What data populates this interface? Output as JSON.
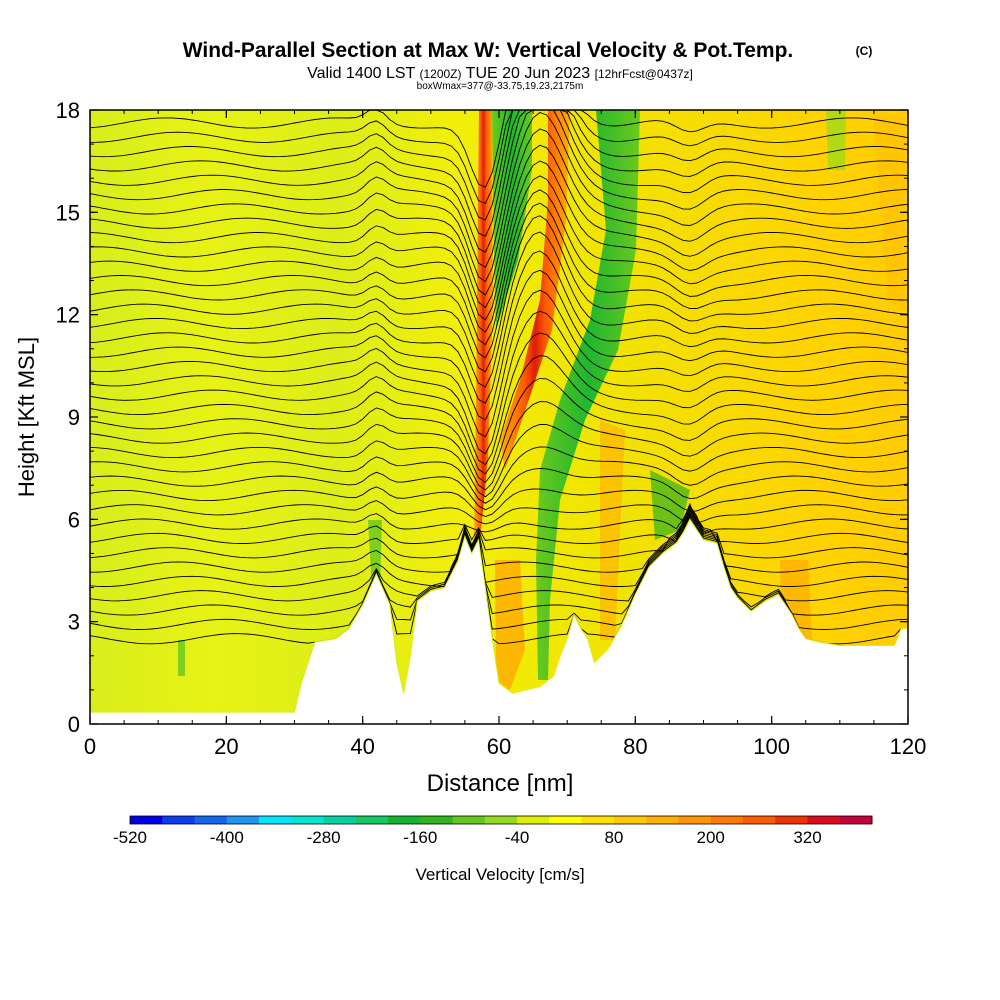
{
  "chart_data": {
    "type": "heatmap",
    "title_main": "Wind-Parallel Section at Max W: Vertical Velocity & Pot.Temp.",
    "title_copyright": "(C)",
    "subtitle_valid": "Valid 1400 LST",
    "subtitle_utc": "(1200Z)",
    "subtitle_date": "TUE 20 Jun 2023",
    "subtitle_fcst": "[12hrFcst@0437z]",
    "subtitle_box": "boxWmax=377@-33.75,19.23,2175m",
    "xlabel": "Distance [nm]",
    "ylabel": "Height [Kft MSL]",
    "xlim": [
      0,
      120
    ],
    "ylim": [
      0,
      18
    ],
    "xticks": [
      "0",
      "20",
      "40",
      "60",
      "80",
      "100",
      "120"
    ],
    "yticks": [
      "0",
      "3",
      "6",
      "9",
      "12",
      "15",
      "18"
    ],
    "colorbar_label": "Vertical Velocity [cm/s]",
    "colorbar_ticks": [
      "-520",
      "-400",
      "-280",
      "-160",
      "-40",
      "80",
      "200",
      "320"
    ],
    "colorbar_colors": [
      "#0000e6",
      "#0a3cf0",
      "#1468f0",
      "#1e96f0",
      "#00e6ff",
      "#00e6d2",
      "#00d2a0",
      "#14c864",
      "#14b432",
      "#32b41e",
      "#64c81e",
      "#96dc1e",
      "#dcf000",
      "#ffff00",
      "#ffe100",
      "#ffc800",
      "#ffaf00",
      "#ff9600",
      "#ff7800",
      "#ff5a00",
      "#f03200",
      "#dc0a1e",
      "#c8003c"
    ],
    "terrain_kft": [
      [
        0,
        0.35
      ],
      [
        30,
        0.35
      ],
      [
        31,
        1.2
      ],
      [
        32,
        1.8
      ],
      [
        33,
        2.4
      ],
      [
        36,
        2.5
      ],
      [
        38,
        2.8
      ],
      [
        40,
        3.5
      ],
      [
        42,
        4.4
      ],
      [
        44,
        3.5
      ],
      [
        45,
        1.8
      ],
      [
        46,
        0.9
      ],
      [
        47,
        2.0
      ],
      [
        48,
        3.6
      ],
      [
        50,
        3.9
      ],
      [
        52,
        4.0
      ],
      [
        54,
        4.8
      ],
      [
        55,
        5.5
      ],
      [
        56,
        5.0
      ],
      [
        57,
        5.4
      ],
      [
        58,
        4.0
      ],
      [
        59,
        2.5
      ],
      [
        60,
        1.2
      ],
      [
        62,
        0.9
      ],
      [
        64,
        1.0
      ],
      [
        66,
        1.1
      ],
      [
        68,
        1.4
      ],
      [
        69,
        2.0
      ],
      [
        70,
        2.5
      ],
      [
        71,
        3.2
      ],
      [
        72,
        2.8
      ],
      [
        73,
        2.5
      ],
      [
        74,
        1.8
      ],
      [
        76,
        2.2
      ],
      [
        78,
        2.9
      ],
      [
        80,
        3.8
      ],
      [
        82,
        4.6
      ],
      [
        84,
        5.0
      ],
      [
        86,
        5.3
      ],
      [
        87,
        5.6
      ],
      [
        88,
        6.0
      ],
      [
        89,
        5.7
      ],
      [
        90,
        5.4
      ],
      [
        92,
        5.3
      ],
      [
        93,
        4.6
      ],
      [
        94,
        4.0
      ],
      [
        95,
        3.7
      ],
      [
        97,
        3.3
      ],
      [
        99,
        3.6
      ],
      [
        101,
        3.8
      ],
      [
        103,
        3.2
      ],
      [
        104,
        2.8
      ],
      [
        105,
        2.5
      ],
      [
        107,
        2.4
      ],
      [
        110,
        2.3
      ],
      [
        115,
        2.3
      ],
      [
        118,
        2.3
      ],
      [
        119,
        2.8
      ],
      [
        120,
        2.8
      ]
    ],
    "updraft_core": {
      "x_nm": 58,
      "max_cms": 377,
      "height_m": 2175
    },
    "theta_contours": "black isentropes, ~40 levels"
  }
}
